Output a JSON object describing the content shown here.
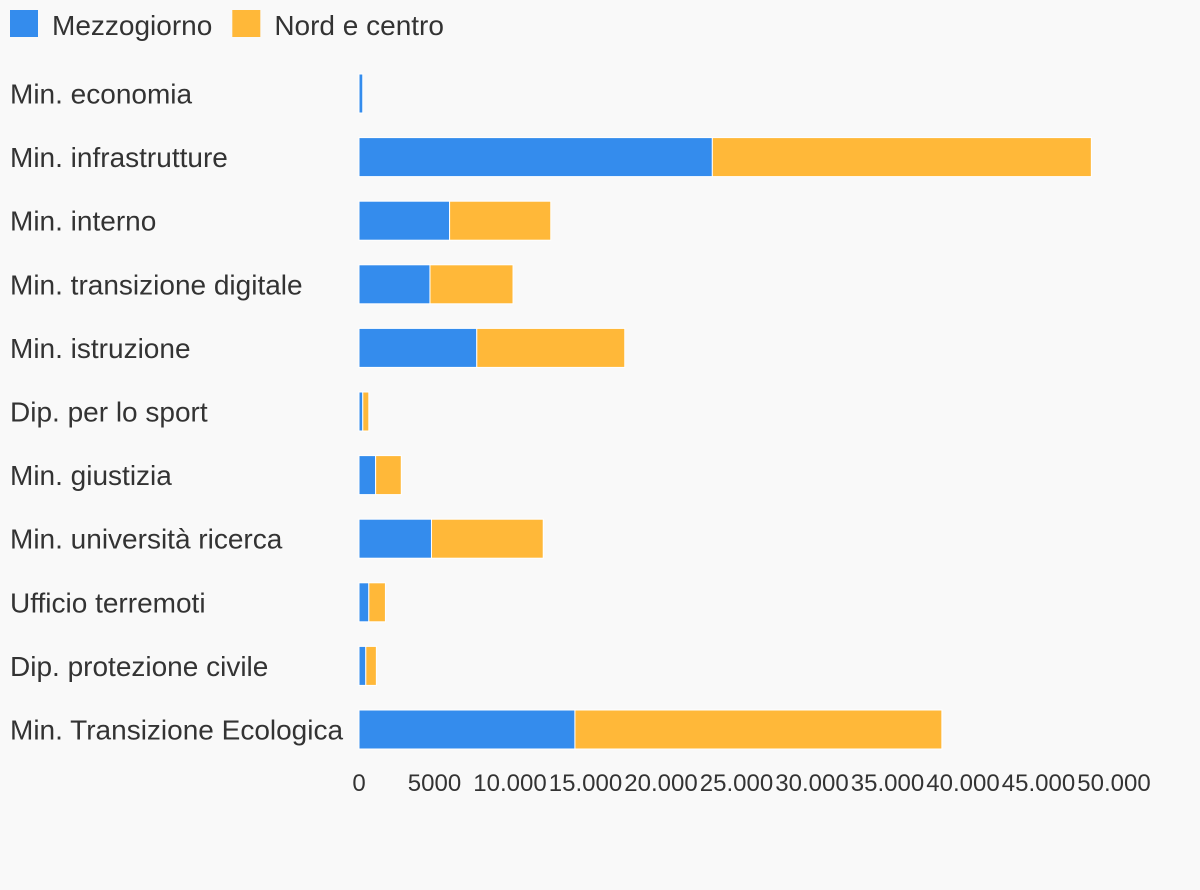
{
  "chart_data": {
    "type": "bar",
    "orientation": "horizontal",
    "stacked": true,
    "categories": [
      "Min. economia",
      "Min. infrastrutture",
      "Min. interno",
      "Min. transizione digitale",
      "Min. istruzione",
      "Dip. per lo sport",
      "Min. giustizia",
      "Min. università ricerca",
      "Ufficio terremoti",
      "Dip. protezione civile",
      "Min. Transizione Ecologica"
    ],
    "series": [
      {
        "name": "Mezzogiorno",
        "color": "#348ced",
        "values": [
          250,
          23400,
          6000,
          4700,
          7800,
          250,
          1100,
          4800,
          650,
          450,
          14300
        ]
      },
      {
        "name": "Nord e centro",
        "color": "#ffb839",
        "values": [
          0,
          25100,
          6700,
          5500,
          9800,
          400,
          1700,
          7400,
          1100,
          700,
          24300
        ]
      }
    ],
    "xlim": [
      0,
      50000
    ],
    "xticks": [
      0,
      5000,
      10000,
      15000,
      20000,
      25000,
      30000,
      35000,
      40000,
      45000,
      50000
    ],
    "xtick_labels": [
      "0",
      "5000",
      "10.000",
      "15.000",
      "20.000",
      "25.000",
      "30.000",
      "35.000",
      "40.000",
      "45.000",
      "50.000"
    ],
    "legend_position": "top-left",
    "grid": false,
    "title": "",
    "xlabel": "",
    "ylabel": ""
  }
}
